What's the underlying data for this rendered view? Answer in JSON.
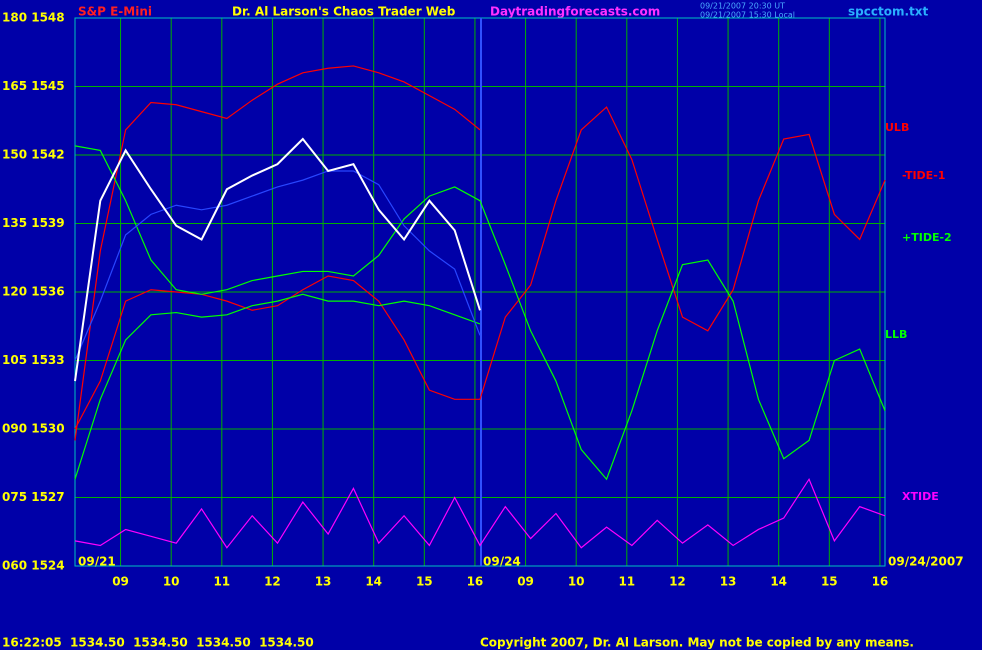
{
  "chart_data": {
    "type": "line",
    "subtitle": "S&P E-Mini",
    "title": "Dr. Al Larson's Chaos Trader Web",
    "source": "Daytradingforecasts.com",
    "timestamps": [
      "09/21/2007 20:30 UT",
      "09/21/2007 15:30 Local"
    ],
    "file": "spcctom.txt",
    "date_labels": [
      "09/21",
      "09/24",
      "09/24/2007"
    ],
    "status": "16:22:05  1534.50  1534.50  1534.50  1534.50",
    "copyright": "Copyright 2007, Dr. Al Larson. May not be copied by any means.",
    "grid": true,
    "x": [
      0,
      0.5,
      1,
      1.5,
      2,
      2.5,
      3,
      3.5,
      4,
      4.5,
      5,
      5.5,
      6,
      6.5,
      7,
      7.5,
      8,
      8.5,
      9,
      9.5,
      10,
      10.5,
      11,
      11.5,
      12,
      12.5,
      13,
      13.5,
      14,
      14.5,
      15,
      15.5,
      16
    ],
    "xlim": [
      0,
      16
    ],
    "xticks": [
      {
        "value": 0.9,
        "label": "09"
      },
      {
        "value": 1.9,
        "label": "10"
      },
      {
        "value": 2.9,
        "label": "11"
      },
      {
        "value": 3.9,
        "label": "12"
      },
      {
        "value": 4.9,
        "label": "13"
      },
      {
        "value": 5.9,
        "label": "14"
      },
      {
        "value": 6.9,
        "label": "15"
      },
      {
        "value": 7.9,
        "label": "16"
      },
      {
        "value": 8.9,
        "label": "09"
      },
      {
        "value": 9.9,
        "label": "10"
      },
      {
        "value": 10.9,
        "label": "11"
      },
      {
        "value": 11.9,
        "label": "12"
      },
      {
        "value": 12.9,
        "label": "13"
      },
      {
        "value": 13.9,
        "label": "14"
      },
      {
        "value": 14.9,
        "label": "15"
      },
      {
        "value": 15.9,
        "label": "16"
      }
    ],
    "ylim": [
      1524,
      1548
    ],
    "yticks": [
      {
        "value": 1548,
        "label": "180 1548"
      },
      {
        "value": 1545,
        "label": "165 1545"
      },
      {
        "value": 1542,
        "label": "150 1542"
      },
      {
        "value": 1539,
        "label": "135 1539"
      },
      {
        "value": 1536,
        "label": "120 1536"
      },
      {
        "value": 1533,
        "label": "105 1533"
      },
      {
        "value": 1530,
        "label": "090 1530"
      },
      {
        "value": 1527,
        "label": "075 1527"
      },
      {
        "value": 1524,
        "label": "060 1524"
      }
    ],
    "series": [
      {
        "name": "ULB",
        "color": "#ff0000",
        "values": [
          1529.5,
          1537.8,
          1543.1,
          1544.3,
          1544.2,
          1543.9,
          1543.6,
          1544.4,
          1545.1,
          1545.6,
          1545.8,
          1545.9,
          1545.6,
          1545.2,
          1544.6,
          1544.0,
          1543.1,
          null,
          null,
          null,
          null,
          null,
          null,
          null,
          null,
          null,
          null,
          null,
          null,
          null,
          null,
          null,
          null
        ]
      },
      {
        "name": "-TIDE-1",
        "color": "#ff0000",
        "values": [
          1530.0,
          1532.1,
          1535.6,
          1536.1,
          1536.0,
          1535.9,
          1535.6,
          1535.2,
          1535.4,
          1536.1,
          1536.7,
          1536.5,
          1535.6,
          1533.9,
          1531.7,
          1531.3,
          1531.3,
          1534.9,
          1536.3,
          1540.0,
          1543.1,
          1544.1,
          1541.8,
          1538.3,
          1534.9,
          1534.3,
          1536.1,
          1540.0,
          1542.7,
          1542.9,
          1539.4,
          1538.3,
          1540.9
        ]
      },
      {
        "name": "+TIDE-2",
        "color": "#00ff00",
        "values": [
          1542.4,
          1542.2,
          1540.0,
          1537.4,
          1536.1,
          1535.9,
          1536.1,
          1536.5,
          1536.7,
          1536.9,
          1536.9,
          1536.7,
          1537.6,
          1539.2,
          1540.2,
          1540.6,
          1540.0,
          1537.2,
          1534.3,
          1532.1,
          1529.1,
          1527.8,
          1530.8,
          1534.3,
          1537.2,
          1537.4,
          1535.6,
          1531.3,
          1528.7,
          1529.5,
          1533.0,
          1533.5,
          1530.8
        ]
      },
      {
        "name": "LLB",
        "color": "#00ff00",
        "values": [
          1527.8,
          1531.3,
          1533.9,
          1535.0,
          1535.1,
          1534.9,
          1535.0,
          1535.4,
          1535.6,
          1535.9,
          1535.6,
          1535.6,
          1535.4,
          1535.6,
          1535.4,
          1535.0,
          1534.6,
          null,
          null,
          null,
          null,
          null,
          null,
          null,
          null,
          null,
          null,
          null,
          null,
          null,
          null,
          null,
          null
        ]
      },
      {
        "name": "XTIDE",
        "color": "#ff00ff",
        "values": [
          1525.1,
          1524.9,
          1525.6,
          1525.3,
          1525.0,
          1526.5,
          1524.8,
          1526.2,
          1525.0,
          1526.8,
          1525.4,
          1527.4,
          1525.0,
          1526.2,
          1524.9,
          1527.0,
          1524.9,
          1526.6,
          1525.2,
          1526.3,
          1524.8,
          1525.7,
          1524.9,
          1526.0,
          1525.0,
          1525.8,
          1524.9,
          1525.6,
          1526.1,
          1527.8,
          1525.1,
          1526.6,
          1526.2
        ]
      },
      {
        "color": "#2846ff",
        "values": [
          1533.0,
          1535.6,
          1538.5,
          1539.4,
          1539.8,
          1539.6,
          1539.8,
          1540.2,
          1540.6,
          1540.9,
          1541.3,
          1541.3,
          1540.7,
          1538.9,
          1537.8,
          1537.0,
          1534.1,
          null,
          null,
          null,
          null,
          null,
          null,
          null,
          null,
          null,
          null,
          null,
          null,
          null,
          null,
          null,
          null
        ]
      },
      {
        "color": "#ffffff",
        "values": [
          1532.1,
          1540.0,
          1542.2,
          1540.5,
          1538.9,
          1538.3,
          1540.5,
          1541.1,
          1541.6,
          1542.7,
          1541.3,
          1541.6,
          1539.6,
          1538.3,
          1540.0,
          1538.7,
          1535.2,
          null,
          null,
          null,
          null,
          null,
          null,
          null,
          null,
          null,
          null,
          null,
          null,
          null,
          null,
          null,
          null
        ]
      }
    ]
  }
}
